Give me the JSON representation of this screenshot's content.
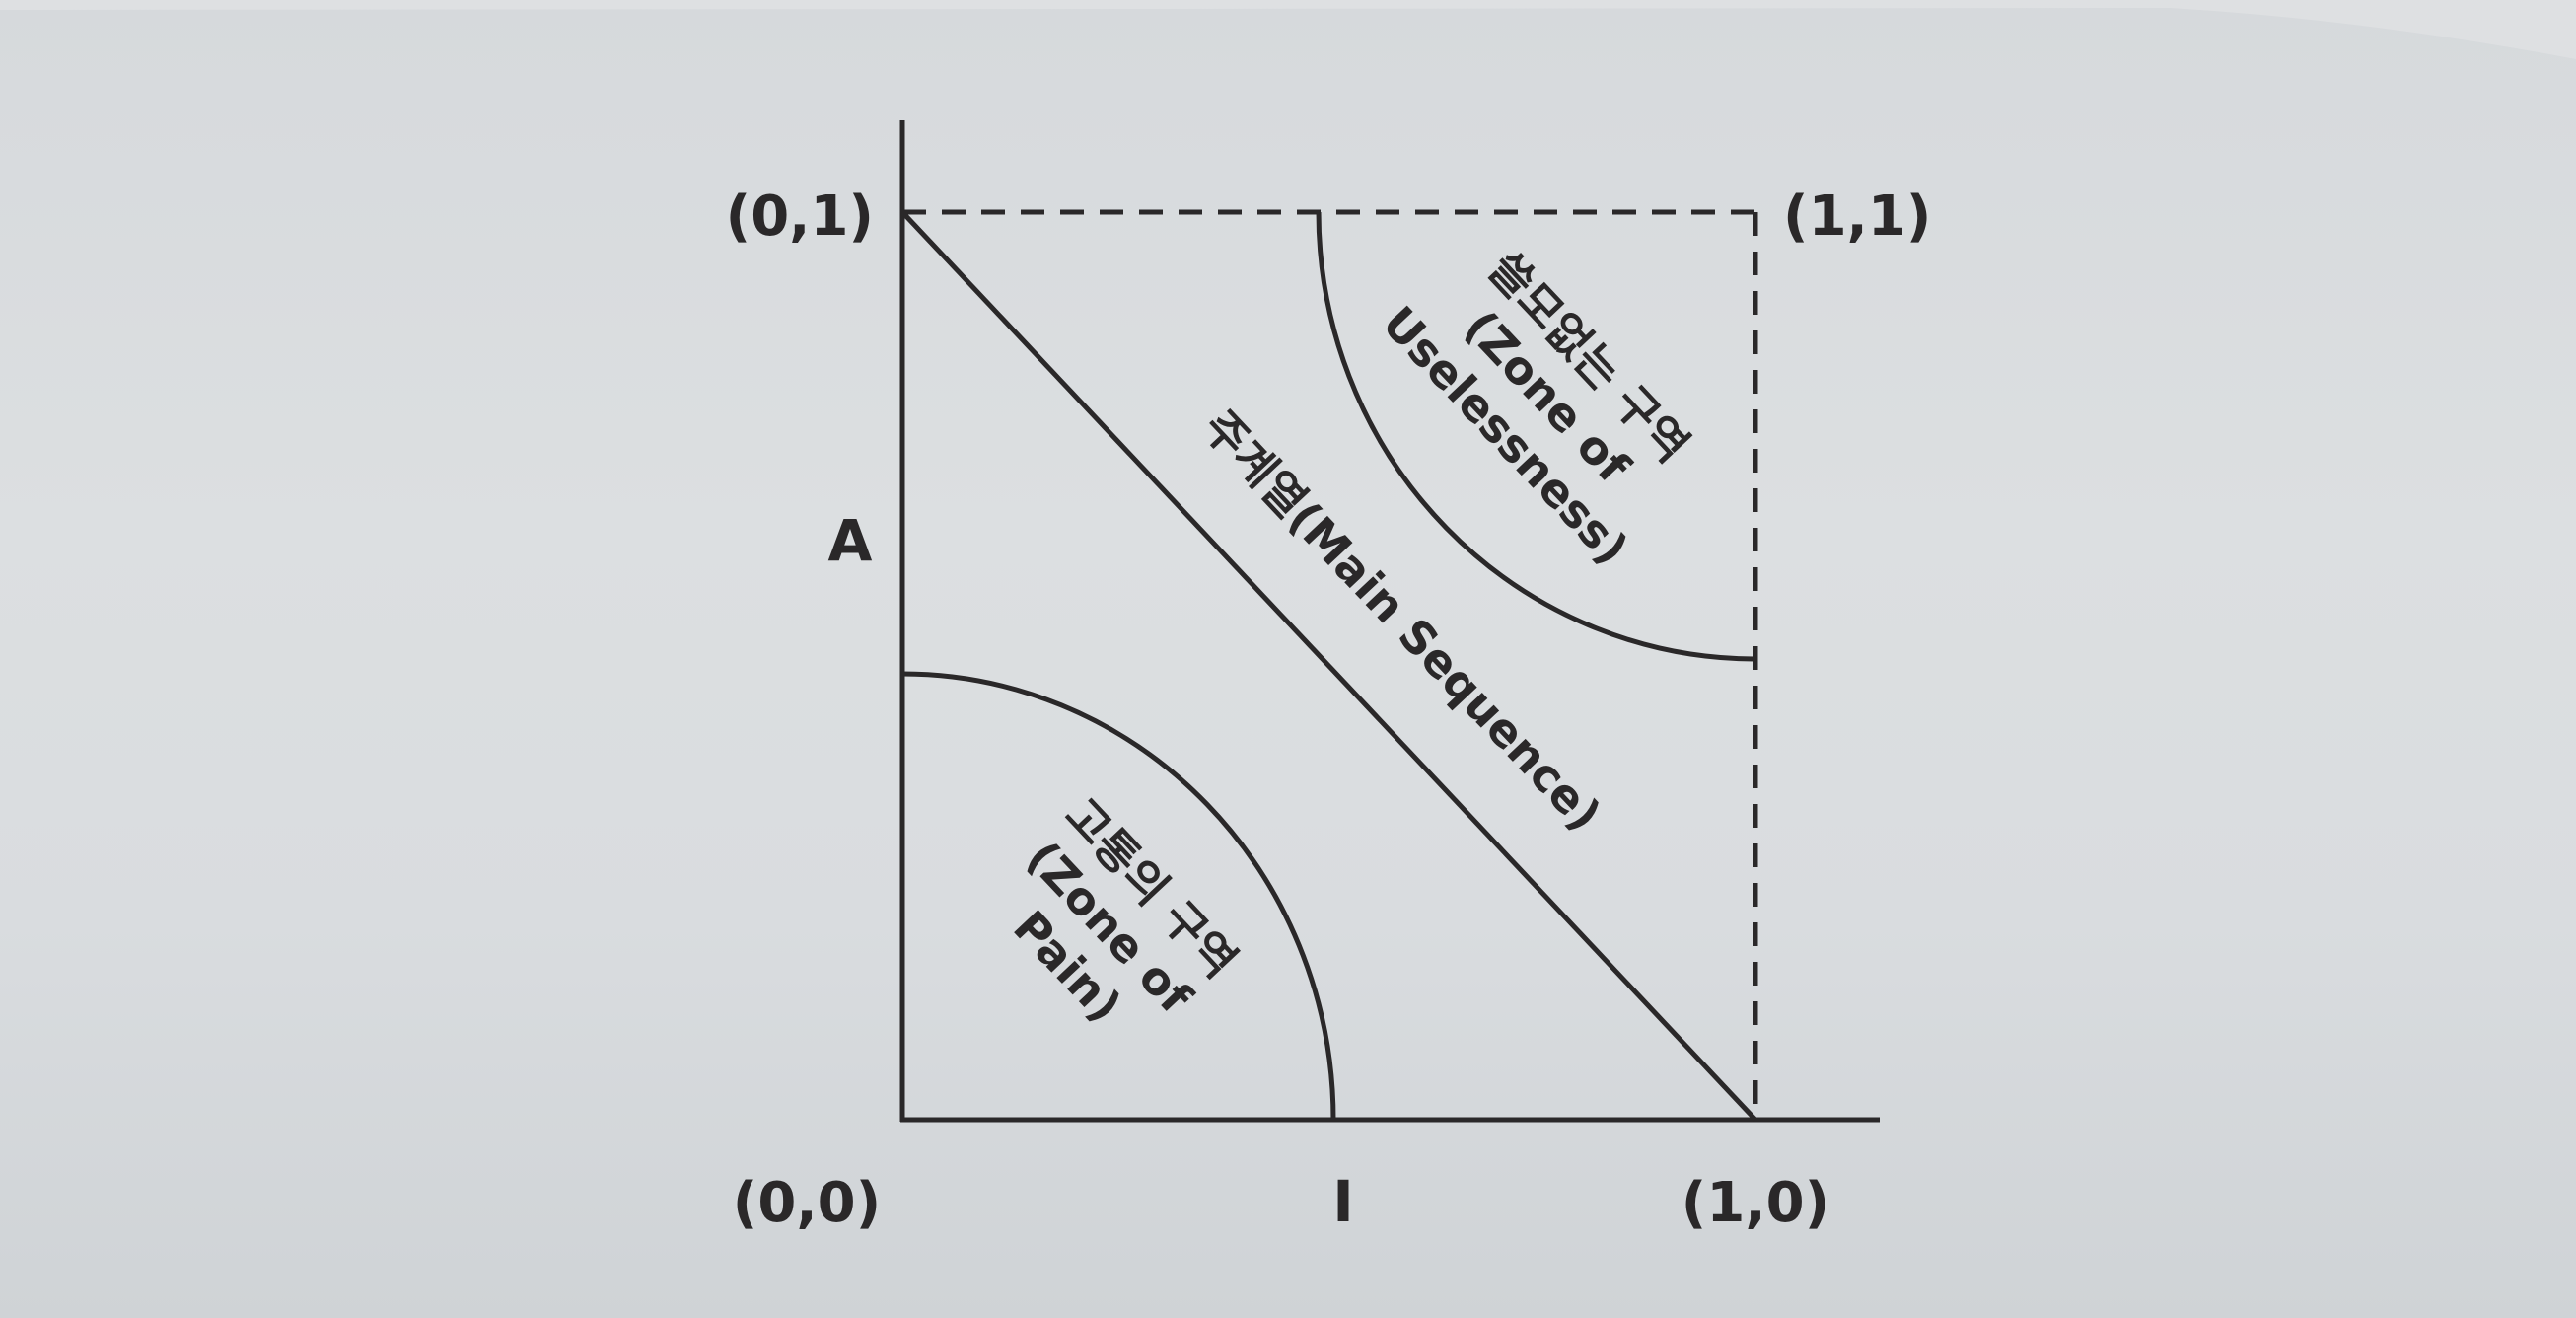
{
  "diagram": {
    "points": {
      "origin": "(0,0)",
      "top_left": "(0,1)",
      "top_right": "(1,1)",
      "bottom_right": "(1,0)"
    },
    "axes": {
      "y_label": "A",
      "x_label": "I"
    },
    "main_sequence": "주계열(Main Sequence)",
    "zone_of_pain": {
      "korean": "고통의 구역",
      "english_line1": "(Zone of",
      "english_line2": "Pain)"
    },
    "zone_of_uselessness": {
      "korean": "쓸모없는 구역",
      "english_line1": "(Zone of",
      "english_line2": "Uselessness)"
    },
    "colors": {
      "ink": "#2a2829",
      "paper": "#dcdfe1"
    }
  }
}
